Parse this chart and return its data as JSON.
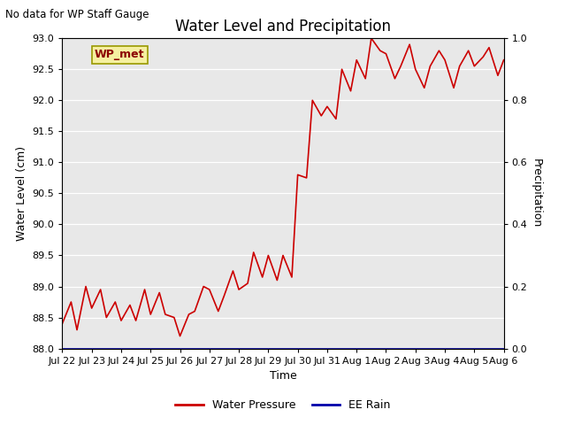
{
  "title": "Water Level and Precipitation",
  "top_left_text": "No data for WP Staff Gauge",
  "xlabel": "Time",
  "ylabel_left": "Water Level (cm)",
  "ylabel_right": "Precipitation",
  "annotation_text": "WP_met",
  "ylim_left": [
    88.0,
    93.0
  ],
  "ylim_right": [
    0.0,
    1.0
  ],
  "yticks_left": [
    88.0,
    88.5,
    89.0,
    89.5,
    90.0,
    90.5,
    91.0,
    91.5,
    92.0,
    92.5,
    93.0
  ],
  "yticks_right": [
    0.0,
    0.2,
    0.4,
    0.6,
    0.8,
    1.0
  ],
  "line_color": "#cc0000",
  "blue_line_color": "#0000aa",
  "bg_color": "#e8e8e8",
  "legend_labels": [
    "Water Pressure",
    "EE Rain"
  ],
  "legend_colors": [
    "#cc0000",
    "#0000aa"
  ],
  "x_labels": [
    "Jul 22",
    "Jul 23",
    "Jul 24",
    "Jul 25",
    "Jul 26",
    "Jul 27",
    "Jul 28",
    "Jul 29",
    "Jul 30",
    "Jul 31",
    "Aug 1",
    "Aug 2",
    "Aug 3",
    "Aug 4",
    "Aug 5",
    "Aug 6"
  ],
  "water_level_x": [
    0,
    0.3,
    0.5,
    0.8,
    1.0,
    1.3,
    1.5,
    1.8,
    2.0,
    2.3,
    2.5,
    2.8,
    3.0,
    3.3,
    3.5,
    3.8,
    4.0,
    4.3,
    4.5,
    4.8,
    5.0,
    5.3,
    5.5,
    5.8,
    6.0,
    6.3,
    6.5,
    6.8,
    7.0,
    7.3,
    7.5,
    7.8,
    8.0,
    8.3,
    8.5,
    8.8,
    9.0,
    9.3,
    9.5,
    9.8,
    10.0,
    10.3,
    10.5,
    10.8,
    11.0,
    11.3,
    11.5,
    11.8,
    12.0,
    12.3,
    12.5,
    12.8,
    13.0,
    13.3,
    13.5,
    13.8,
    14.0,
    14.3,
    14.5,
    14.8,
    15.0
  ],
  "water_level": [
    88.4,
    88.75,
    88.3,
    89.0,
    88.65,
    88.95,
    88.5,
    88.75,
    88.45,
    88.7,
    88.45,
    88.95,
    88.55,
    88.9,
    88.55,
    88.5,
    88.2,
    88.55,
    88.6,
    89.0,
    88.95,
    88.6,
    88.85,
    89.25,
    88.95,
    89.05,
    89.55,
    89.15,
    89.5,
    89.1,
    89.5,
    89.15,
    90.8,
    90.75,
    92.0,
    91.75,
    91.9,
    91.7,
    92.5,
    92.15,
    92.65,
    92.35,
    93.0,
    92.8,
    92.75,
    92.35,
    92.55,
    92.9,
    92.5,
    92.2,
    92.55,
    92.8,
    92.65,
    92.2,
    92.55,
    92.8,
    92.55,
    92.7,
    92.85,
    92.4,
    92.65
  ]
}
